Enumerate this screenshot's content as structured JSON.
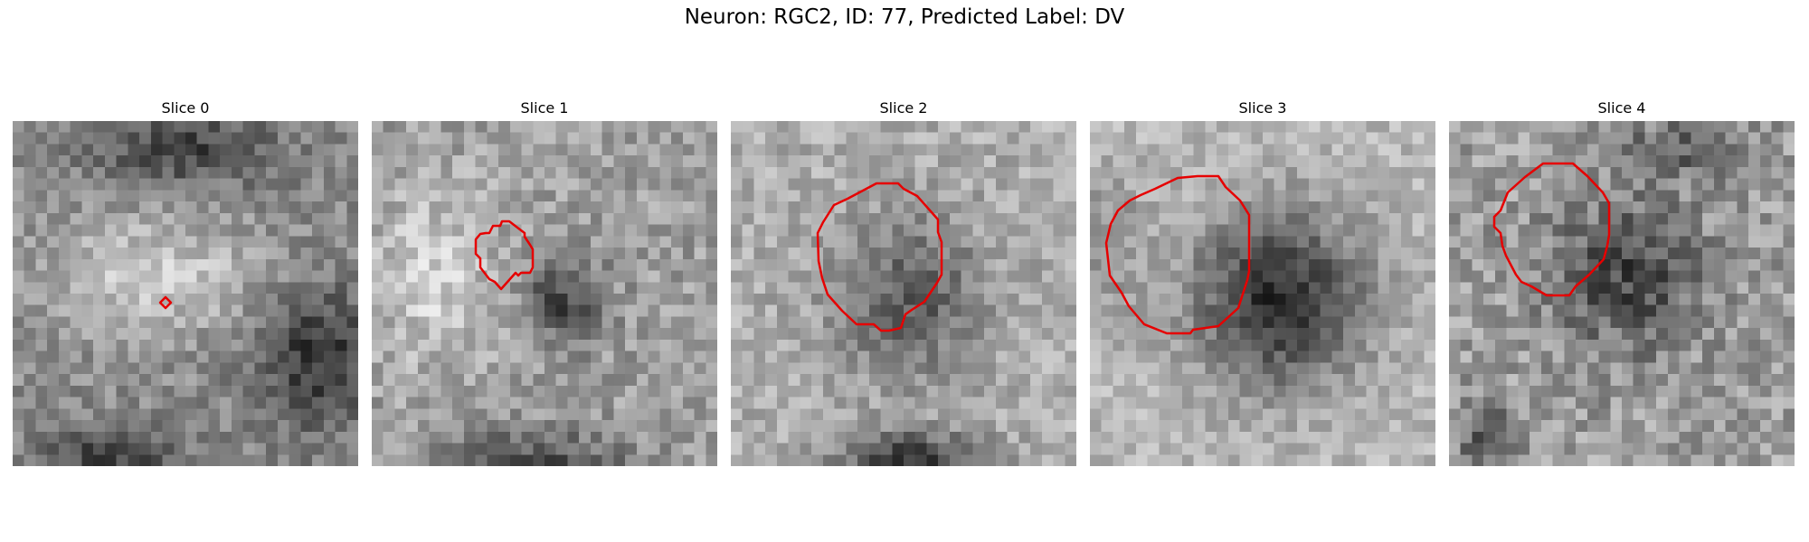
{
  "figure": {
    "title": "Neuron: RGC2, ID: 77, Predicted Label: DV"
  },
  "contour_color": "#e60000",
  "colormap": "gray",
  "panels": [
    {
      "title": "Slice 0",
      "image": "grayscale-microscopy-slice",
      "contour": "tiny-red-diamond-marker"
    },
    {
      "title": "Slice 1",
      "image": "grayscale-microscopy-slice",
      "contour": "red-polygon-outline-small-cell"
    },
    {
      "title": "Slice 2",
      "image": "grayscale-microscopy-slice",
      "contour": "red-polygon-outline-cell"
    },
    {
      "title": "Slice 3",
      "image": "grayscale-microscopy-slice",
      "contour": "red-polygon-outline-large-cell"
    },
    {
      "title": "Slice 4",
      "image": "grayscale-microscopy-slice",
      "contour": "red-polygon-outline-cell"
    }
  ]
}
